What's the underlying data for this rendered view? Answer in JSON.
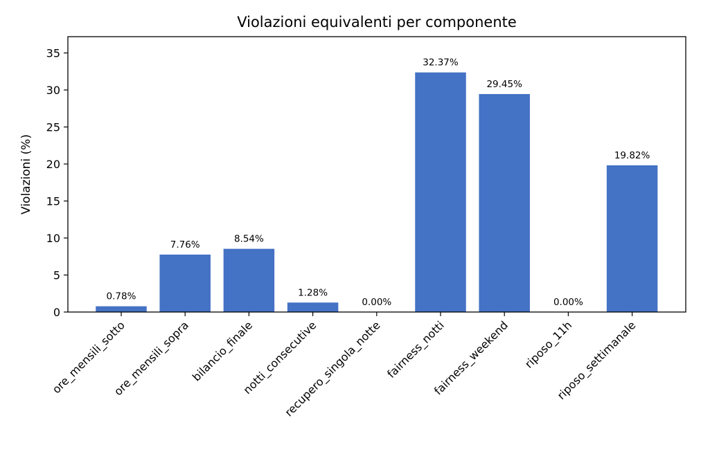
{
  "chart_data": {
    "type": "bar",
    "title": "Violazioni equivalenti per componente",
    "xlabel": "",
    "ylabel": "Violazioni (%)",
    "categories": [
      "ore_mensili_sotto",
      "ore_mensili_sopra",
      "bilancio_finale",
      "notti_consecutive",
      "recupero_singola_notte",
      "fairness_notti",
      "fairness_weekend",
      "riposo_11h",
      "riposo_settimanale"
    ],
    "values": [
      0.78,
      7.76,
      8.54,
      1.28,
      0.0,
      32.37,
      29.45,
      0.0,
      19.82
    ],
    "data_labels": [
      "0.78%",
      "7.76%",
      "8.54%",
      "1.28%",
      "0.00%",
      "32.37%",
      "29.45%",
      "0.00%",
      "19.82%"
    ],
    "yticks": [
      0,
      5,
      10,
      15,
      20,
      25,
      30,
      35
    ],
    "ylim": [
      0,
      37.2
    ],
    "bar_color": "#4472c4",
    "grid": false,
    "legend": "none"
  }
}
